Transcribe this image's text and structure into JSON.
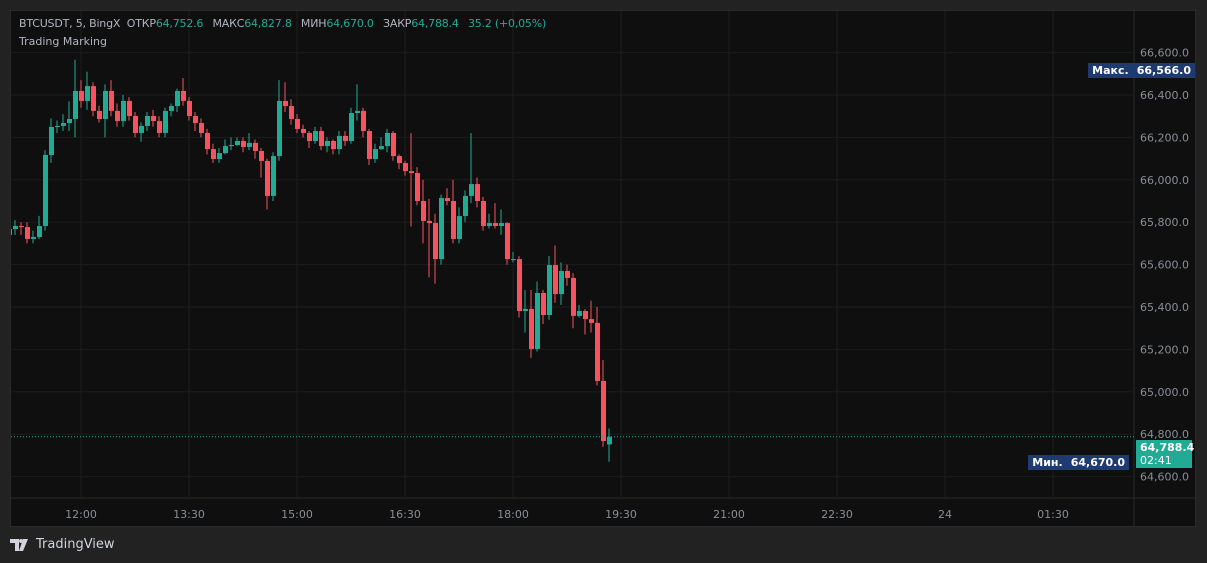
{
  "legend": {
    "symbol": "BTCUSDT, 5, BingX",
    "open_label": "ОТКР",
    "open": "64,752.6",
    "high_label": "МАКС",
    "high": "64,827.8",
    "low_label": "МИН",
    "low": "64,670.0",
    "close_label": "ЗАКР",
    "close": "64,788.4",
    "change": "35.2 (+0,05%)"
  },
  "indicator": "Trading Marking",
  "price_axis": [
    "66,600.0",
    "66,400.0",
    "66,200.0",
    "66,000.0",
    "65,800.0",
    "65,600.0",
    "65,400.0",
    "65,200.0",
    "65,000.0",
    "64,800.0",
    "64,600.0"
  ],
  "time_axis": [
    "12:00",
    "13:30",
    "15:00",
    "16:30",
    "18:00",
    "19:30",
    "21:00",
    "22:30",
    "24",
    "01:30"
  ],
  "max_tag": {
    "label": "Макс.",
    "value": "66,566.0"
  },
  "min_tag": {
    "label": "Мин.",
    "value": "64,670.0"
  },
  "last_price": {
    "value": "64,788.4",
    "countdown": "02:41"
  },
  "brand": "TradingView",
  "colors": {
    "up": "#22ab94",
    "down": "#f7525f",
    "tag": "#1e3a6e",
    "last": "#22ab94"
  },
  "chart_data": {
    "type": "candlestick",
    "interval": "5",
    "first_bar_time": "11:00",
    "ylim": [
      64560,
      66640
    ],
    "candles": [
      [
        65740,
        65800,
        65640,
        65768
      ],
      [
        65768,
        65810,
        65740,
        65782
      ],
      [
        65782,
        65800,
        65740,
        65777
      ],
      [
        65777,
        65800,
        65700,
        65721
      ],
      [
        65721,
        65760,
        65700,
        65730
      ],
      [
        65730,
        65830,
        65720,
        65782
      ],
      [
        65782,
        66140,
        65760,
        66117
      ],
      [
        66117,
        66290,
        66080,
        66249
      ],
      [
        66249,
        66280,
        66220,
        66254
      ],
      [
        66254,
        66310,
        66230,
        66268
      ],
      [
        66268,
        66370,
        66230,
        66287
      ],
      [
        66287,
        66566,
        66200,
        66419
      ],
      [
        66419,
        66470,
        66340,
        66372
      ],
      [
        66372,
        66510,
        66330,
        66442
      ],
      [
        66442,
        66460,
        66300,
        66325
      ],
      [
        66325,
        66350,
        66270,
        66287
      ],
      [
        66287,
        66450,
        66200,
        66419
      ],
      [
        66419,
        66470,
        66300,
        66325
      ],
      [
        66325,
        66360,
        66250,
        66277
      ],
      [
        66277,
        66400,
        66250,
        66372
      ],
      [
        66372,
        66390,
        66280,
        66301
      ],
      [
        66301,
        66320,
        66200,
        66221
      ],
      [
        66221,
        66270,
        66180,
        66254
      ],
      [
        66254,
        66320,
        66230,
        66301
      ],
      [
        66301,
        66330,
        66250,
        66277
      ],
      [
        66277,
        66300,
        66200,
        66221
      ],
      [
        66221,
        66340,
        66200,
        66325
      ],
      [
        66325,
        66360,
        66300,
        66348
      ],
      [
        66348,
        66430,
        66320,
        66419
      ],
      [
        66419,
        66480,
        66350,
        66372
      ],
      [
        66372,
        66390,
        66280,
        66301
      ],
      [
        66301,
        66320,
        66230,
        66268
      ],
      [
        66268,
        66290,
        66200,
        66221
      ],
      [
        66221,
        66240,
        66120,
        66145
      ],
      [
        66145,
        66170,
        66080,
        66098
      ],
      [
        66098,
        66150,
        66080,
        66126
      ],
      [
        66126,
        66190,
        66120,
        66159
      ],
      [
        66159,
        66200,
        66140,
        66164
      ],
      [
        66164,
        66200,
        66160,
        66183
      ],
      [
        66183,
        66200,
        66130,
        66155
      ],
      [
        66155,
        66220,
        66140,
        66174
      ],
      [
        66174,
        66190,
        66100,
        66136
      ],
      [
        66136,
        66150,
        66010,
        66089
      ],
      [
        66089,
        66100,
        65860,
        65924
      ],
      [
        65924,
        66130,
        65900,
        66112
      ],
      [
        66112,
        66470,
        66090,
        66372
      ],
      [
        66372,
        66460,
        66320,
        66348
      ],
      [
        66348,
        66380,
        66260,
        66287
      ],
      [
        66287,
        66310,
        66220,
        66240
      ],
      [
        66240,
        66260,
        66200,
        66221
      ],
      [
        66221,
        66230,
        66150,
        66183
      ],
      [
        66183,
        66250,
        66170,
        66230
      ],
      [
        66230,
        66250,
        66140,
        66159
      ],
      [
        66159,
        66200,
        66130,
        66183
      ],
      [
        66183,
        66190,
        66120,
        66145
      ],
      [
        66145,
        66230,
        66120,
        66207
      ],
      [
        66207,
        66230,
        66160,
        66183
      ],
      [
        66183,
        66340,
        66170,
        66315
      ],
      [
        66315,
        66450,
        66280,
        66325
      ],
      [
        66325,
        66340,
        66200,
        66230
      ],
      [
        66230,
        66240,
        66070,
        66098
      ],
      [
        66098,
        66170,
        66080,
        66145
      ],
      [
        66145,
        66200,
        66140,
        66159
      ],
      [
        66159,
        66240,
        66130,
        66221
      ],
      [
        66221,
        66230,
        66090,
        66112
      ],
      [
        66112,
        66120,
        66050,
        66079
      ],
      [
        66079,
        66090,
        66020,
        66041
      ],
      [
        66041,
        66220,
        65780,
        66032
      ],
      [
        66032,
        66060,
        65880,
        65900
      ],
      [
        65900,
        66000,
        65700,
        65806
      ],
      [
        65806,
        65910,
        65540,
        65796
      ],
      [
        65796,
        65840,
        65510,
        65626
      ],
      [
        65626,
        65930,
        65600,
        65914
      ],
      [
        65914,
        65960,
        65880,
        65900
      ],
      [
        65900,
        66000,
        65700,
        65721
      ],
      [
        65721,
        65870,
        65700,
        65829
      ],
      [
        65829,
        65950,
        65800,
        65924
      ],
      [
        65924,
        66220,
        65890,
        65980
      ],
      [
        65980,
        66010,
        65870,
        65900
      ],
      [
        65900,
        65920,
        65760,
        65782
      ],
      [
        65782,
        65840,
        65770,
        65796
      ],
      [
        65796,
        65890,
        65770,
        65782
      ],
      [
        65782,
        65860,
        65740,
        65796
      ],
      [
        65796,
        65800,
        65600,
        65626
      ],
      [
        65626,
        65660,
        65610,
        65626
      ],
      [
        65626,
        65640,
        65350,
        65381
      ],
      [
        65381,
        65480,
        65280,
        65391
      ],
      [
        65391,
        65480,
        65160,
        65202
      ],
      [
        65202,
        65520,
        65190,
        65466
      ],
      [
        65466,
        65480,
        65320,
        65362
      ],
      [
        65362,
        65640,
        65340,
        65598
      ],
      [
        65598,
        65690,
        65420,
        65461
      ],
      [
        65461,
        65610,
        65410,
        65570
      ],
      [
        65570,
        65600,
        65500,
        65537
      ],
      [
        65537,
        65560,
        65300,
        65358
      ],
      [
        65358,
        65410,
        65350,
        65381
      ],
      [
        65381,
        65390,
        65270,
        65343
      ],
      [
        65343,
        65430,
        65280,
        65325
      ],
      [
        65325,
        65400,
        65030,
        65051
      ],
      [
        65051,
        65150,
        64740,
        64768
      ],
      [
        64752,
        64827,
        64670,
        64788
      ]
    ]
  }
}
